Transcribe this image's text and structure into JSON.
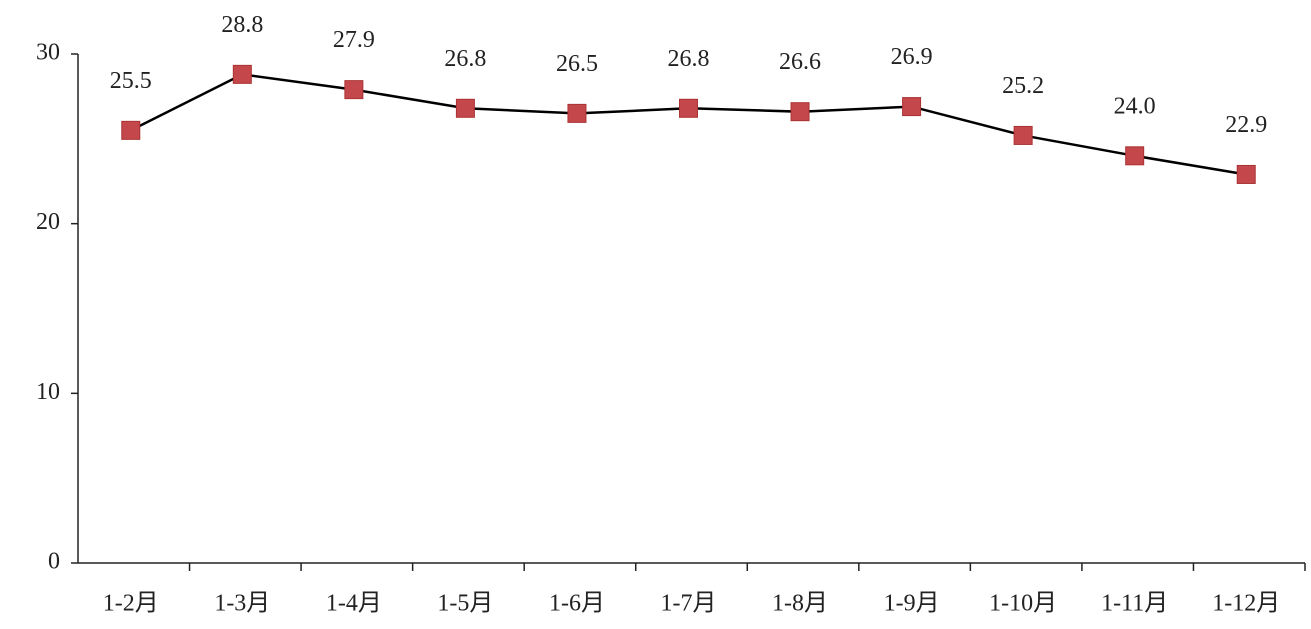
{
  "chart_data": {
    "type": "line",
    "categories": [
      "1-2月",
      "1-3月",
      "1-4月",
      "1-5月",
      "1-6月",
      "1-7月",
      "1-8月",
      "1-9月",
      "1-10月",
      "1-11月",
      "1-12月"
    ],
    "values": [
      25.5,
      28.8,
      27.9,
      26.8,
      26.5,
      26.8,
      26.6,
      26.9,
      25.2,
      24.0,
      22.9
    ],
    "value_labels": [
      "25.5",
      "28.8",
      "27.9",
      "26.8",
      "26.5",
      "26.8",
      "26.6",
      "26.9",
      "25.2",
      "24.0",
      "22.9"
    ],
    "color": "#c4474c",
    "line_color": "#000000",
    "ylim": [
      0,
      30
    ],
    "yticks": [
      0,
      10,
      20,
      30
    ],
    "grid": false
  }
}
